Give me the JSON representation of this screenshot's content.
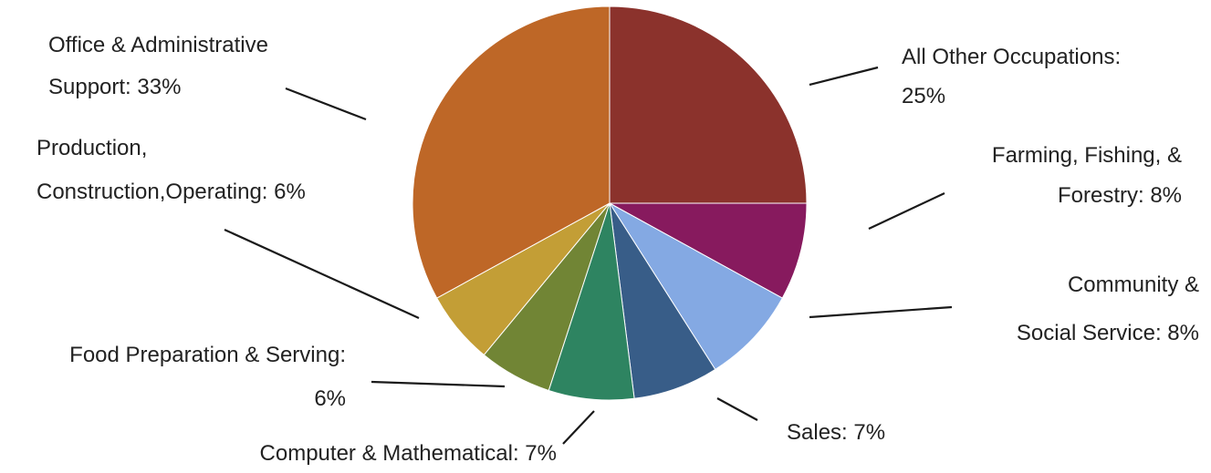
{
  "chart_data": {
    "type": "pie",
    "start": "12 o'clock",
    "direction": "clockwise",
    "slices": [
      {
        "line1": "All Other Occupations:",
        "line2": "25%",
        "value": 25,
        "color": "#8B322C"
      },
      {
        "line1": "Farming, Fishing, &",
        "line2": "Forestry: 8%",
        "value": 8,
        "color": "#871A5E"
      },
      {
        "line1": "Community &",
        "line2": "Social Service: 8%",
        "value": 8,
        "color": "#84A9E3"
      },
      {
        "line1": "Sales: 7%",
        "line2": "",
        "value": 7,
        "color": "#385D88"
      },
      {
        "line1": "Computer & Mathematical: 7%",
        "line2": "",
        "value": 7,
        "color": "#2E8461"
      },
      {
        "line1": "Food Preparation & Serving:",
        "line2": "6%",
        "value": 6,
        "color": "#718535"
      },
      {
        "line1": "Production,",
        "line2": "Construction,Operating: 6%",
        "value": 6,
        "color": "#C39E36"
      },
      {
        "line1": "Office & Administrative",
        "line2": "Support: 33%",
        "value": 33,
        "color": "#BE6727"
      }
    ]
  }
}
